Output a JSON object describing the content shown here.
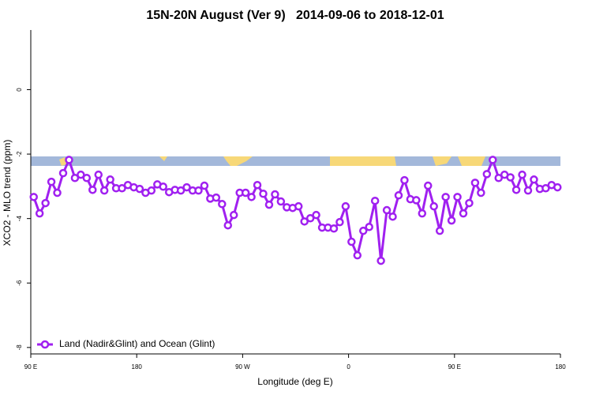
{
  "chart_data": {
    "type": "line",
    "title": "15N-20N August (Ver 9)   2014-09-06 to 2018-12-01",
    "x_label": "Longitude (deg E)",
    "y_label": "XCO2 - MLO trend (ppm)",
    "xlim": [
      90,
      540
    ],
    "xticks": [
      {
        "value": 90,
        "label": "90 E"
      },
      {
        "value": 180,
        "label": "180"
      },
      {
        "value": 270,
        "label": "90 W"
      },
      {
        "value": 360,
        "label": "0"
      },
      {
        "value": 450,
        "label": "90 E"
      },
      {
        "value": 540,
        "label": "180"
      }
    ],
    "ylim": [
      -8.2,
      1.85
    ],
    "yticks": [
      0,
      -2,
      -4,
      -6,
      -8
    ],
    "legend_position": "bottom-left",
    "x": [
      92.5,
      97.5,
      102.5,
      107.5,
      112.5,
      117.5,
      122.5,
      127.5,
      132.5,
      137.5,
      142.5,
      147.5,
      152.5,
      157.5,
      162.5,
      167.5,
      172.5,
      177.5,
      182.5,
      187.5,
      192.5,
      197.5,
      202.5,
      207.5,
      212.5,
      217.5,
      222.5,
      227.5,
      232.5,
      237.5,
      242.5,
      247.5,
      252.5,
      257.5,
      262.5,
      267.5,
      272.5,
      277.5,
      282.5,
      287.5,
      292.5,
      297.5,
      302.5,
      307.5,
      312.5,
      317.5,
      322.5,
      327.5,
      332.5,
      337.5,
      342.5,
      347.5,
      352.5,
      357.5,
      362.5,
      367.5,
      372.5,
      377.5,
      382.5,
      387.5,
      392.5,
      397.5,
      402.5,
      407.5,
      412.5,
      417.5,
      422.5,
      427.5,
      432.5,
      437.5,
      442.5,
      447.5,
      452.5,
      457.5,
      462.5,
      467.5,
      472.5,
      477.5,
      482.5,
      487.5,
      492.5,
      497.5,
      502.5,
      507.5,
      512.5,
      517.5,
      522.5,
      527.5,
      532.5,
      537.5
    ],
    "series": [
      {
        "name": "Land (Nadir&Glint) and Ocean (Glint)",
        "color": "#a020f0",
        "values": [
          -3.33,
          -3.84,
          -3.52,
          -2.86,
          -3.2,
          -2.59,
          -2.18,
          -2.74,
          -2.64,
          -2.74,
          -3.11,
          -2.64,
          -3.13,
          -2.79,
          -3.06,
          -3.06,
          -2.96,
          -3.03,
          -3.08,
          -3.2,
          -3.13,
          -2.94,
          -3.01,
          -3.18,
          -3.11,
          -3.13,
          -3.03,
          -3.13,
          -3.13,
          -2.98,
          -3.38,
          -3.35,
          -3.55,
          -4.21,
          -3.89,
          -3.2,
          -3.2,
          -3.33,
          -2.96,
          -3.23,
          -3.57,
          -3.25,
          -3.47,
          -3.65,
          -3.67,
          -3.62,
          -4.09,
          -3.99,
          -3.89,
          -4.28,
          -4.28,
          -4.31,
          -4.11,
          -3.62,
          -4.72,
          -5.14,
          -4.38,
          -4.26,
          -3.45,
          -5.31,
          -3.74,
          -3.94,
          -3.28,
          -2.81,
          -3.4,
          -3.43,
          -3.84,
          -2.98,
          -3.62,
          -4.38,
          -3.33,
          -4.06,
          -3.33,
          -3.84,
          -3.52,
          -2.89,
          -3.2,
          -2.62,
          -2.18,
          -2.74,
          -2.64,
          -2.72,
          -3.11,
          -2.64,
          -3.13,
          -2.79,
          -3.08,
          -3.06,
          -2.96,
          -3.03
        ]
      }
    ]
  }
}
